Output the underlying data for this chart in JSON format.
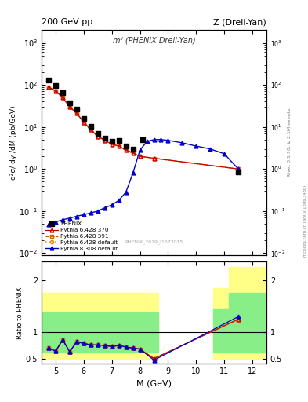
{
  "title_left": "200 GeV pp",
  "title_right": "Z (Drell-Yan)",
  "right_label": "Rivet 3.1.10, ≥ 2.1M events",
  "arxiv_label": "mcplots.cern.ch [arXiv:1306.3436]",
  "plot_label": "mˡˡ (PHENIX Drell-Yan)",
  "ref_id": "PHENIX_2019_I1672015",
  "xlabel": "M (GeV)",
  "ylabel": "d²σ/ dy /dM (pb/GeV)",
  "ratio_ylabel": "Ratio to PHENIX",
  "phenix_M": [
    4.75,
    5.0,
    5.25,
    5.5,
    5.75,
    6.0,
    6.25,
    6.5,
    6.75,
    7.0,
    7.25,
    7.5,
    7.75,
    8.1,
    11.5
  ],
  "phenix_vals": [
    130,
    95,
    65,
    38,
    26,
    16,
    10.5,
    7.0,
    5.5,
    4.5,
    4.8,
    3.5,
    3.0,
    5.0,
    0.85
  ],
  "py6_370_M": [
    4.75,
    5.0,
    5.25,
    5.5,
    5.75,
    6.0,
    6.25,
    6.5,
    6.75,
    7.0,
    7.25,
    7.5,
    7.75,
    8.0,
    8.5,
    11.5
  ],
  "py6_370_vals": [
    88,
    72,
    50,
    30,
    21,
    13,
    8.5,
    6.0,
    4.8,
    3.9,
    3.5,
    2.8,
    2.4,
    2.0,
    1.8,
    1.0
  ],
  "py6_391_M": [
    4.75,
    5.0,
    5.25,
    5.5,
    5.75,
    6.0,
    6.25,
    6.5,
    6.75,
    7.0,
    7.25,
    7.5,
    7.75,
    8.0,
    8.5,
    11.5
  ],
  "py6_391_vals": [
    88,
    72,
    50,
    30,
    21,
    13,
    8.5,
    6.0,
    4.8,
    3.9,
    3.5,
    2.8,
    2.4,
    2.0,
    1.8,
    1.0
  ],
  "py6_def_M": [
    4.75,
    5.0,
    5.25,
    5.5,
    5.75,
    6.0,
    6.25,
    6.5,
    6.75,
    7.0,
    7.25,
    7.5,
    7.75,
    8.0,
    8.5,
    11.5
  ],
  "py6_def_vals": [
    88,
    72,
    50,
    30,
    21,
    13,
    8.5,
    6.0,
    4.8,
    3.9,
    3.5,
    2.8,
    2.4,
    2.0,
    1.8,
    1.0
  ],
  "py8_M": [
    4.75,
    5.0,
    5.25,
    5.5,
    5.75,
    6.0,
    6.25,
    6.5,
    6.75,
    7.0,
    7.25,
    7.5,
    7.75,
    8.0,
    8.25,
    8.5,
    8.75,
    9.0,
    9.5,
    10.0,
    10.5,
    11.0,
    11.5
  ],
  "py8_vals": [
    0.048,
    0.055,
    0.062,
    0.068,
    0.075,
    0.082,
    0.09,
    0.1,
    0.12,
    0.14,
    0.18,
    0.28,
    0.8,
    2.8,
    4.5,
    5.0,
    5.0,
    4.8,
    4.2,
    3.5,
    3.0,
    2.3,
    1.0
  ],
  "ratio_py6_370_M": [
    4.75,
    5.0,
    5.25,
    5.5,
    5.75,
    6.0,
    6.25,
    6.5,
    6.75,
    7.0,
    7.25,
    7.5,
    7.75,
    8.0,
    8.5,
    11.5
  ],
  "ratio_py6_370_vals": [
    0.7,
    0.64,
    0.86,
    0.63,
    0.82,
    0.79,
    0.76,
    0.76,
    0.75,
    0.73,
    0.75,
    0.72,
    0.7,
    0.68,
    0.5,
    1.25
  ],
  "ratio_py6_391_M": [
    4.75,
    5.0,
    5.25,
    5.5,
    5.75,
    6.0,
    6.25,
    6.5,
    6.75,
    7.0,
    7.25,
    7.5,
    7.75,
    8.0,
    8.5,
    11.5
  ],
  "ratio_py6_391_vals": [
    0.7,
    0.64,
    0.86,
    0.63,
    0.82,
    0.79,
    0.76,
    0.76,
    0.75,
    0.73,
    0.75,
    0.72,
    0.7,
    0.68,
    0.5,
    1.25
  ],
  "ratio_py6_def_M": [
    4.75,
    5.0,
    5.25,
    5.5,
    5.75,
    6.0,
    6.25,
    6.5,
    6.75,
    7.0,
    7.25,
    7.5,
    7.75,
    8.0,
    8.5,
    11.5
  ],
  "ratio_py6_def_vals": [
    0.7,
    0.64,
    0.86,
    0.63,
    0.82,
    0.79,
    0.76,
    0.76,
    0.75,
    0.73,
    0.75,
    0.72,
    0.7,
    0.68,
    0.5,
    1.25
  ],
  "ratio_py8_M": [
    4.75,
    5.0,
    5.25,
    5.5,
    5.75,
    6.0,
    6.25,
    6.5,
    6.75,
    7.0,
    7.25,
    7.5,
    7.75,
    8.0,
    8.5,
    11.5
  ],
  "ratio_py8_vals": [
    0.7,
    0.64,
    0.86,
    0.63,
    0.82,
    0.79,
    0.76,
    0.76,
    0.75,
    0.73,
    0.75,
    0.72,
    0.7,
    0.68,
    0.47,
    1.3
  ],
  "band_yellow_regions": [
    {
      "xmin": 4.5,
      "xmax": 8.65,
      "ymin": 0.5,
      "ymax": 1.75
    },
    {
      "xmin": 10.6,
      "xmax": 11.15,
      "ymin": 0.5,
      "ymax": 1.85
    },
    {
      "xmin": 11.15,
      "xmax": 12.5,
      "ymin": 0.5,
      "ymax": 2.25
    }
  ],
  "band_green_regions": [
    {
      "xmin": 4.5,
      "xmax": 8.65,
      "ymin": 0.62,
      "ymax": 1.38
    },
    {
      "xmin": 10.6,
      "xmax": 11.15,
      "ymin": 0.62,
      "ymax": 1.45
    },
    {
      "xmin": 11.15,
      "xmax": 12.5,
      "ymin": 0.62,
      "ymax": 1.75
    }
  ],
  "color_py6_370": "#cc0000",
  "color_py6_391": "#cc6600",
  "color_py6_def": "#dd8800",
  "color_py8": "#0000cc",
  "color_phenix": "#000000",
  "xlim": [
    4.5,
    12.5
  ],
  "ylim_main": [
    0.009,
    2000
  ],
  "ylim_ratio": [
    0.4,
    2.35
  ],
  "ratio_yticks": [
    0.5,
    1.0,
    2.0
  ],
  "ratio_yticklabels": [
    "0.5",
    "1",
    "2"
  ]
}
